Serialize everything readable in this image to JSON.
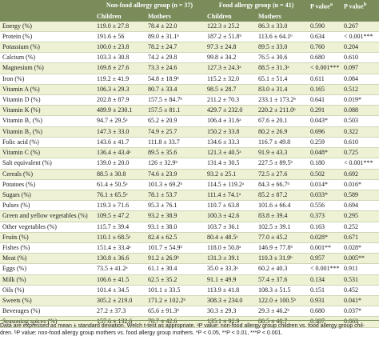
{
  "header": {
    "group1": "Non-food allergy group (n = 37)",
    "group2": "Food allergy group (n = 41)",
    "pa": "P value",
    "pa_sup": "a",
    "pb": "P value",
    "pb_sup": "b",
    "children1": "Children",
    "mothers1": "Mothers",
    "children2": "Children",
    "mothers2": "Mothers"
  },
  "rows": [
    {
      "name": "Energy (%)",
      "c1": "119.0 ± 27.8",
      "m1": "78.4 ± 22.0",
      "c2": "122.3 ± 25.2",
      "m2": "86.3 ± 33.0",
      "pa": "0.590",
      "pb": "0.267"
    },
    {
      "name": "Protein (%)",
      "c1": "191.6 ± 56",
      "m1": "89.0 ± 31.1ᵇ",
      "c2": "187.2 ± 51.8ᵇ",
      "m2": "113.6 ± 64.1ᵇ",
      "pa": "0.634",
      "pb": "< 0.001***"
    },
    {
      "name": "Potassium (%)",
      "c1": "100.0 ± 23.8",
      "m1": "78.2 ± 24.7",
      "c2": "97.3 ± 24.8",
      "m2": "89.5 ± 33.0",
      "pa": "0.760",
      "pb": "0.204"
    },
    {
      "name": "Calcium (%)",
      "c1": "103.3 ± 30.8",
      "m1": "74.2 ± 29.8",
      "c2": "99.8 ± 34.2",
      "m2": "76.5 ± 30.6",
      "pa": "0.680",
      "pb": "0.610"
    },
    {
      "name": "Magnesium (%)",
      "c1": "169.8 ± 27.6",
      "m1": "73.3 ± 24.6",
      "c2": "127.3 ± 24.3ᵃ",
      "m2": "88.5 ± 31.3ᵃ",
      "pa": "< 0.001***",
      "pb": "0.097"
    },
    {
      "name": "Iron (%)",
      "c1": "119.2 ± 41.9",
      "m1": "54.8 ± 18.9ᵇ",
      "c2": "115.2 ± 32.0",
      "m2": "65.1 ± 51.4",
      "pa": "0.611",
      "pb": "0.084"
    },
    {
      "name": "Vitamin A (%)",
      "c1": "106.3 ± 29.3",
      "m1": "80.7 ± 33.4",
      "c2": "98.5 ± 28.7",
      "m2": "83.0 ± 31.4",
      "pa": "0.165",
      "pb": "0.512"
    },
    {
      "name": "Vitamin D (%)",
      "c1": "202.8 ± 87.9",
      "m1": "157.5 ± 84.7ᵇ",
      "c2": "211.2 ± 70.3",
      "m2": "233.1 ± 173.2ᵇ",
      "pa": "0.641",
      "pb": "0.019*"
    },
    {
      "name": "Vitamin K (%)",
      "c1": "489.9 ± 230.1",
      "m1": "157.5 ± 81.1",
      "c2": "429.7 ± 232.0",
      "m2": "220.2 ± 211.0ᵇ",
      "pa": "0.291",
      "pb": "0.088"
    },
    {
      "name": "Vitamin B₁ (%)",
      "c1": "94.7 ± 29.5ᵃ",
      "m1": "65.2 ± 20.9",
      "c2": "106.4 ± 31.6ᵃ",
      "m2": "67.6 ± 20.1",
      "pa": "0.043*",
      "pb": "0.503"
    },
    {
      "name": "Vitamin B₂ (%)",
      "c1": "147.3 ± 33.0",
      "m1": "74.9 ± 25.7",
      "c2": "150.2 ± 33.8",
      "m2": "80.2 ± 26.9",
      "pa": "0.696",
      "pb": "0.322"
    },
    {
      "name": "Folic acid (%)",
      "c1": "143.6 ± 41.7",
      "m1": "111.8 ± 33.7",
      "c2": "134.6 ± 33.3",
      "m2": "116.7 ± 49.8",
      "pa": "0.259",
      "pb": "0.610"
    },
    {
      "name": "Vitamin C (%)",
      "c1": "136.4 ± 43.4ᵃ",
      "m1": "89.5 ± 35.6",
      "c2": "121.3 ± 40.5ᵃ",
      "m2": "91.9 ± 43.3",
      "pa": "0.048*",
      "pb": "0.725"
    },
    {
      "name": "Salt equivalent (%)",
      "c1": "139.0 ± 20.0",
      "m1": "126 ± 32.9ᵇ",
      "c2": "131.4 ± 30.5",
      "m2": "227.5 ± 89.5ᵇ",
      "pa": "0.180",
      "pb": "< 0.001***"
    },
    {
      "name": "Cereals (%)",
      "c1": "88.5 ± 30.8",
      "m1": "74.6 ± 23.9",
      "c2": "93.2 ± 25.1",
      "m2": "72.5 ± 27.6",
      "pa": "0.502",
      "pb": "0.692"
    },
    {
      "name": "Potatoes (%)",
      "c1": "61.4 ± 50.5ᵃ",
      "m1": "101.3 ± 69.2ᵇ",
      "c2": "114.5 ± 119.2ᵃ",
      "m2": "84.3 ± 66.7ᵇ",
      "pa": "0.014*",
      "pb": "0.016*"
    },
    {
      "name": "Sugars (%)",
      "c1": "76.1 ± 65.5ᵃ",
      "m1": "78.1 ± 53.7",
      "c2": "111.4 ± 74.1ᵃ",
      "m2": "85.2 ± 87.2",
      "pa": "0.033*",
      "pb": "0.589"
    },
    {
      "name": "Pulses (%)",
      "c1": "119.3 ± 71.6",
      "m1": "95.3 ± 76.1",
      "c2": "110.7 ± 63.8",
      "m2": "101.6 ± 66.4",
      "pa": "0.556",
      "pb": "0.694"
    },
    {
      "name": "Green and yellow vegetables (%)",
      "c1": "109.5 ± 47.2",
      "m1": "93.2 ± 38.9",
      "c2": "100.3 ± 42.6",
      "m2": "83.8 ± 39.4",
      "pa": "0.373",
      "pb": "0.295"
    },
    {
      "name": "Other vegetables (%)",
      "c1": "115.7 ± 39.4",
      "m1": "93.1 ± 38.0",
      "c2": "103.7 ± 36.1",
      "m2": "102.5 ± 39.1",
      "pa": "0.163",
      "pb": "0.252"
    },
    {
      "name": "Fruits (%)",
      "c1": "110.1 ± 68.5ᵃ",
      "m1": "82.4 ± 62.5",
      "c2": "80.4 ± 48.5ᵃ",
      "m2": "77.0 ± 45.2",
      "pa": "0.028*",
      "pb": "0.671"
    },
    {
      "name": "Fishes (%)",
      "c1": "151.4 ± 33.4ᵃ",
      "m1": "101.7 ± 54.9ᵇ",
      "c2": "118.0 ± 50.8ᵃ",
      "m2": "146.9 ± 77.8ᵇ",
      "pa": "0.001**",
      "pb": "0.028*"
    },
    {
      "name": "Meat (%)",
      "c1": "130.8 ± 36.6",
      "m1": "91.2 ± 26.9ᵇ",
      "c2": "131.3 ± 39.1",
      "m2": "110.3 ± 31.9ᵇ",
      "pa": "0.957",
      "pb": "0.005**"
    },
    {
      "name": "Eggs (%)",
      "c1": "73.5 ± 41.2ᵃ",
      "m1": "61.1 ± 30.4",
      "c2": "35.0 ± 33.3ᵃ",
      "m2": "60.2 ± 40.3",
      "pa": "< 0.001***",
      "pb": "0.911"
    },
    {
      "name": "Milk (%)",
      "c1": "106.6 ± 41.5",
      "m1": "62.5 ± 35.2",
      "c2": "91.1 ± 49.9",
      "m2": "57.4 ± 37.6",
      "pa": "0.134",
      "pb": "0.531"
    },
    {
      "name": "Oils (%)",
      "c1": "101.4 ± 34.5",
      "m1": "101.1 ± 33.5",
      "c2": "113.9 ± 41.8",
      "m2": "108.3 ± 51.5",
      "pa": "0.151",
      "pb": "0.452"
    },
    {
      "name": "Sweets (%)",
      "c1": "305.2 ± 219.0",
      "m1": "171.2 ± 102.2ᵇ",
      "c2": "308.3 ± 234.0",
      "m2": "122.0 ± 100.5ᵇ",
      "pa": "0.931",
      "pb": "0.041*"
    },
    {
      "name": "Beverages (%)",
      "c1": "27.2 ± 37.3",
      "m1": "65.6 ± 91.3ᵇ",
      "c2": "30.3 ± 29.3",
      "m2": "29.3 ± 46.2ᵇ",
      "pa": "0.680",
      "pb": "0.037*"
    },
    {
      "name": "Seasoning spices (%)",
      "c1": "157.6 ± 132.6",
      "m1": "78.7 ± 42.6",
      "c2": "135.1 ± 92.9",
      "m2": "80.5 ± 48.7",
      "pa": "0.387",
      "pb": "0.863"
    }
  ],
  "footnote": {
    "line1": "Data are expressed as mean ± standard deviation. Welch t-test as appropriate. ᵃP value: non-food allergy group children vs. food allergy group chil-",
    "line2": "dren. ᵇP value: non-food allergy group mothers vs. food allergy group mothers. *P < 0.05, **P < 0.01, ***P < 0.001."
  }
}
